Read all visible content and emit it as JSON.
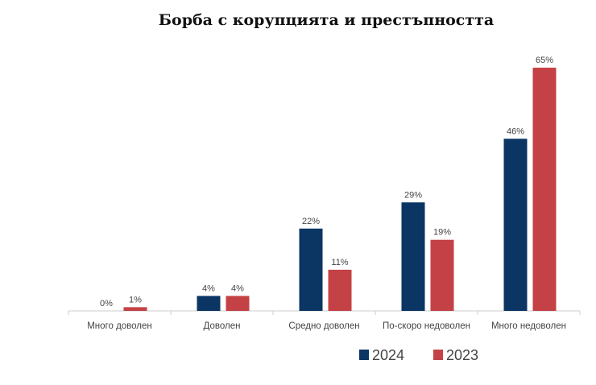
{
  "chart_data": {
    "type": "bar",
    "title": "Борба с корупцията и престъпността",
    "categories": [
      "Много доволен",
      "Доволен",
      "Средно доволен",
      "По-скоро недоволен",
      "Много недоволен"
    ],
    "series": [
      {
        "name": "2024",
        "values": [
          0,
          4,
          22,
          29,
          46
        ],
        "color": "#0b3563"
      },
      {
        "name": "2023",
        "values": [
          1,
          4,
          11,
          19,
          65
        ],
        "color": "#c44245"
      }
    ],
    "value_suffix": "%",
    "ylim": [
      0,
      65
    ],
    "grid": false,
    "legend": "bottom-right"
  }
}
